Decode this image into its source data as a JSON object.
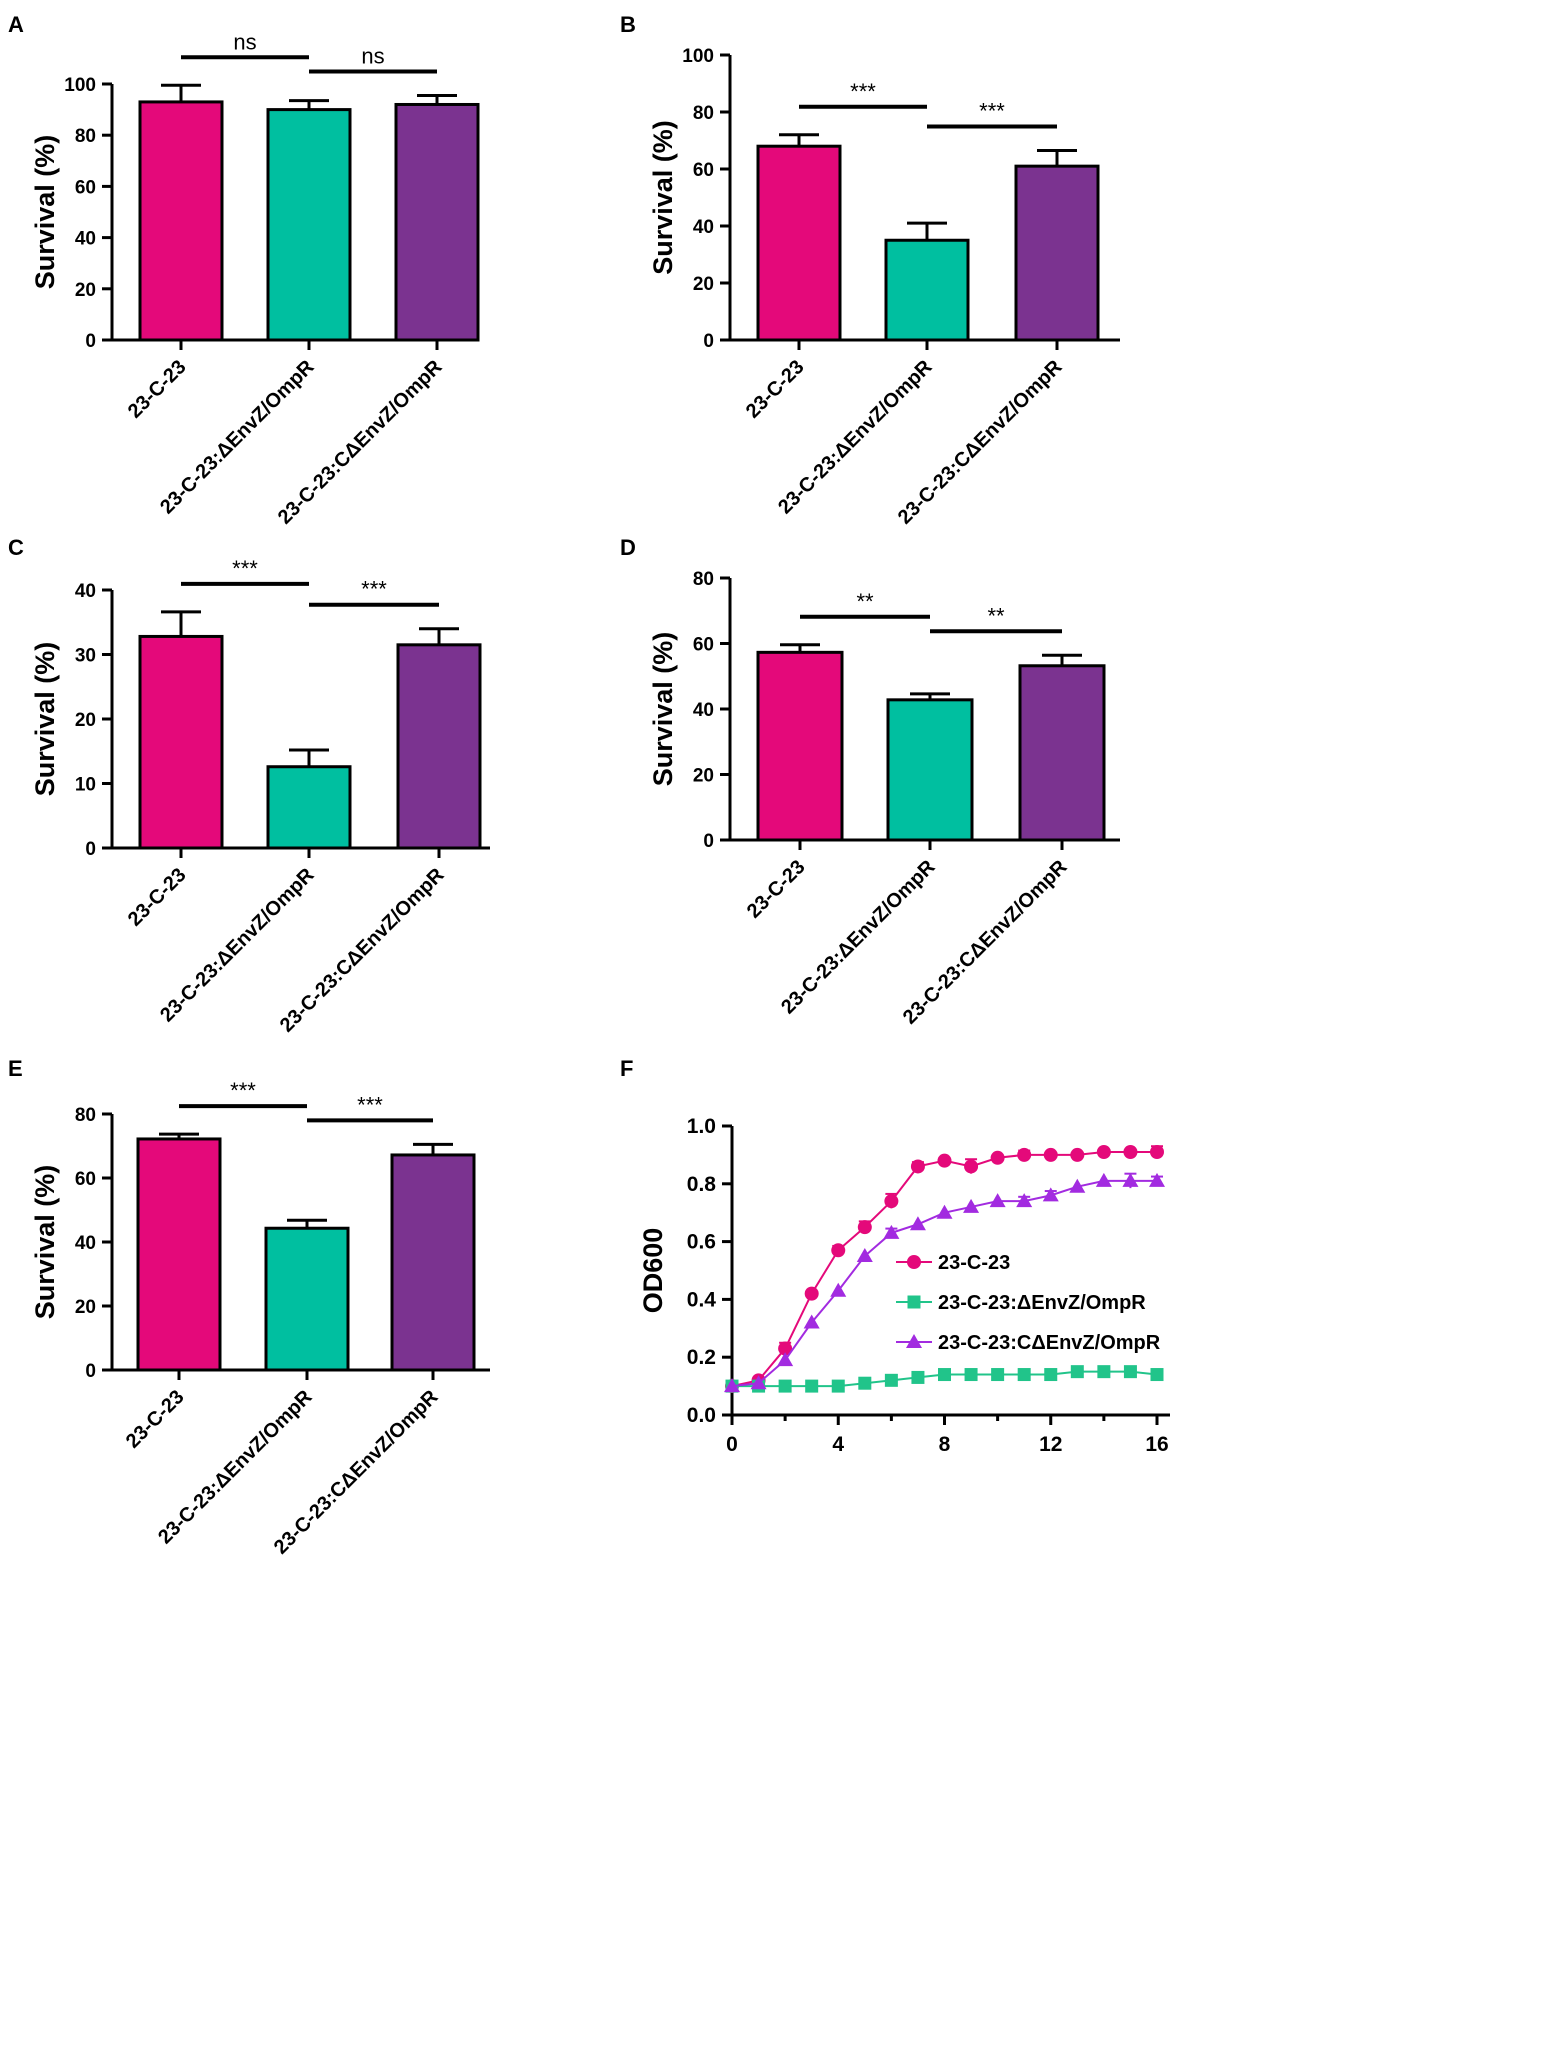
{
  "colors": {
    "strain_wt": "#E4097A",
    "strain_mutant": "#00BFA0",
    "strain_complement": "#7B3390",
    "line_mutant": "#21C48A",
    "line_complement": "#A22BE0",
    "axis": "#000000"
  },
  "icons": {
    "wt": "circle-marker-icon",
    "mutant": "square-marker-icon",
    "complement": "triangle-marker-icon"
  },
  "chart_data": [
    {
      "id": "A",
      "panel_label": "A",
      "type": "bar",
      "ylabel": "Survival (%)",
      "ylim": [
        0,
        100
      ],
      "yticks": [
        0,
        20,
        40,
        60,
        80,
        100
      ],
      "categories": [
        "23-C-23",
        "23-C-23:ΔEnvZ/OmpR",
        "23-C-23:CΔEnvZ/OmpR"
      ],
      "values": [
        93,
        90,
        92
      ],
      "errors": [
        6.5,
        3.5,
        3.5
      ],
      "significance": [
        {
          "from": 0,
          "to": 1,
          "label": "ns"
        },
        {
          "from": 1,
          "to": 2,
          "label": "ns"
        }
      ]
    },
    {
      "id": "B",
      "panel_label": "B",
      "type": "bar",
      "ylabel": "Survival (%)",
      "ylim": [
        0,
        100
      ],
      "yticks": [
        0,
        20,
        40,
        60,
        80,
        100
      ],
      "categories": [
        "23-C-23",
        "23-C-23:ΔEnvZ/OmpR",
        "23-C-23:CΔEnvZ/OmpR"
      ],
      "values": [
        68,
        35,
        61
      ],
      "errors": [
        4,
        6,
        5.5
      ],
      "significance": [
        {
          "from": 0,
          "to": 1,
          "label": "***"
        },
        {
          "from": 1,
          "to": 2,
          "label": "***"
        }
      ]
    },
    {
      "id": "C",
      "panel_label": "C",
      "type": "bar",
      "ylabel": "Survival (%)",
      "ylim": [
        0,
        40
      ],
      "yticks": [
        0,
        10,
        20,
        30,
        40
      ],
      "categories": [
        "23-C-23",
        "23-C-23:ΔEnvZ/OmpR",
        "23-C-23:CΔEnvZ/OmpR"
      ],
      "values": [
        32.8,
        12.6,
        31.5
      ],
      "errors": [
        3.8,
        2.6,
        2.5
      ],
      "significance": [
        {
          "from": 0,
          "to": 1,
          "label": "***"
        },
        {
          "from": 1,
          "to": 2,
          "label": "***"
        }
      ]
    },
    {
      "id": "D",
      "panel_label": "D",
      "type": "bar",
      "ylabel": "Survival (%)",
      "ylim": [
        0,
        80
      ],
      "yticks": [
        0,
        20,
        40,
        60,
        80
      ],
      "categories": [
        "23-C-23",
        "23-C-23:ΔEnvZ/OmpR",
        "23-C-23:CΔEnvZ/OmpR"
      ],
      "values": [
        57.3,
        42.8,
        53.2
      ],
      "errors": [
        2.3,
        1.8,
        3.2
      ],
      "significance": [
        {
          "from": 0,
          "to": 1,
          "label": "**"
        },
        {
          "from": 1,
          "to": 2,
          "label": "**"
        }
      ]
    },
    {
      "id": "E",
      "panel_label": "E",
      "type": "bar",
      "ylabel": "Survival (%)",
      "ylim": [
        0,
        80
      ],
      "yticks": [
        0,
        20,
        40,
        60,
        80
      ],
      "categories": [
        "23-C-23",
        "23-C-23:ΔEnvZ/OmpR",
        "23-C-23:CΔEnvZ/OmpR"
      ],
      "values": [
        72.2,
        44.3,
        67.2
      ],
      "errors": [
        1.5,
        2.5,
        3.3
      ],
      "significance": [
        {
          "from": 0,
          "to": 1,
          "label": "***"
        },
        {
          "from": 1,
          "to": 2,
          "label": "***"
        }
      ]
    },
    {
      "id": "F",
      "panel_label": "F",
      "type": "line",
      "xlabel": "",
      "ylabel": "OD600",
      "xlim": [
        0,
        16
      ],
      "xticks": [
        0,
        4,
        8,
        12,
        16
      ],
      "ylim": [
        0,
        1.0
      ],
      "yticks": [
        "0.0",
        "0.2",
        "0.4",
        "0.6",
        "0.8",
        "1.0"
      ],
      "x": [
        0,
        1,
        2,
        3,
        4,
        5,
        6,
        7,
        8,
        9,
        10,
        11,
        12,
        13,
        14,
        15,
        16
      ],
      "series": [
        {
          "name": "23-C-23",
          "marker": "circle",
          "values": [
            0.1,
            0.12,
            0.23,
            0.42,
            0.57,
            0.65,
            0.74,
            0.86,
            0.88,
            0.86,
            0.89,
            0.9,
            0.9,
            0.9,
            0.91,
            0.91,
            0.91
          ],
          "errors": [
            0,
            0,
            0.02,
            0,
            0.015,
            0.02,
            0.025,
            0.015,
            0,
            0.025,
            0,
            0.015,
            0,
            0,
            0,
            0,
            0.02
          ]
        },
        {
          "name": "23-C-23:ΔEnvZ/OmpR",
          "marker": "square",
          "values": [
            0.1,
            0.1,
            0.1,
            0.1,
            0.1,
            0.11,
            0.12,
            0.13,
            0.14,
            0.14,
            0.14,
            0.14,
            0.14,
            0.15,
            0.15,
            0.15,
            0.14
          ],
          "errors": [
            0,
            0,
            0,
            0,
            0,
            0,
            0,
            0,
            0,
            0,
            0,
            0,
            0,
            0,
            0,
            0,
            0
          ]
        },
        {
          "name": "23-C-23:CΔEnvZ/OmpR",
          "marker": "triangle",
          "values": [
            0.1,
            0.11,
            0.19,
            0.32,
            0.43,
            0.55,
            0.63,
            0.66,
            0.7,
            0.72,
            0.74,
            0.74,
            0.76,
            0.79,
            0.81,
            0.81,
            0.81
          ],
          "errors": [
            0,
            0,
            0,
            0,
            0,
            0,
            0.015,
            0,
            0,
            0,
            0,
            0.015,
            0.015,
            0,
            0,
            0.025,
            0.015
          ]
        }
      ]
    }
  ]
}
